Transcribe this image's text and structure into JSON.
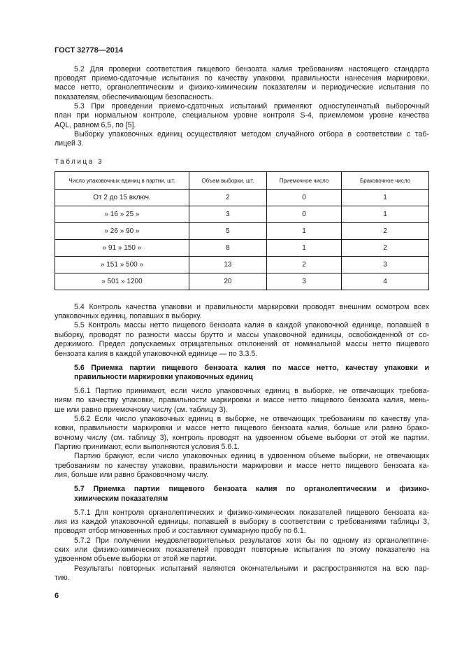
{
  "header": "ГОСТ 32778—2014",
  "blocks_top": [
    {
      "indent": true,
      "lines": [
        "5.2 Для проверки соответствия пищевого бензоата калия требованиям настоящего стандарта",
        "проводят приемо-сдаточные испытания по качеству упаковки, правильности нанесения маркировки,",
        "массе нетто, органолептическим и физико-химическим показателям и периодические испытания по",
        "показателям, обеспечивающим безопасность."
      ]
    },
    {
      "indent": true,
      "lines": [
        "5.3 При проведении приемо-сдаточных испытаний применяют одноступенчатый выборочный",
        "план при нормальном контроле, специальном уровне контроля S-4, приемлемом уровне качества",
        "AQL, равном 6,5, по [5]."
      ]
    },
    {
      "indent": true,
      "lines": [
        "Выборку упаковочных единиц осуществляют методом случайного отбора в соответствии с таб-",
        "лицей 3."
      ]
    }
  ],
  "table": {
    "caption": "Таблица 3",
    "headers": [
      "Число упаковочных единиц в партии, шт.",
      "Объем выборки, шт.",
      "Приемочное число",
      "Браковочное число"
    ],
    "rows": [
      [
        "От 2 до 15 включ.",
        "2",
        "0",
        "1"
      ],
      [
        "» 16 » 25 »",
        "3",
        "0",
        "1"
      ],
      [
        "» 26 » 90 »",
        "5",
        "1",
        "2"
      ],
      [
        "» 91 » 150 »",
        "8",
        "1",
        "2"
      ],
      [
        "» 151 » 500 »",
        "13",
        "2",
        "3"
      ],
      [
        "» 501 » 1200",
        "20",
        "3",
        "4"
      ]
    ]
  },
  "blocks_bottom": [
    {
      "lines": [
        "5.4 Контроль качества упаковки и правильности маркировки проводят внешним осмотром всех",
        "упаковочных единиц, попавших в выборку."
      ]
    },
    {
      "lines": [
        "5.5 Контроль массы нетто пищевого бензоата калия в каждой упаковочной единице, попавшей в",
        "выборку, проводят по разности массы брутто и массы упаковочной единицы, освобожденной от со-",
        "держимого. Предел допускаемых отрицательных отклонений от номинальной массы нетто пищевого",
        "бензоата калия в каждой упаковочной единице — по 3.3.5."
      ]
    },
    {
      "bold": true,
      "lines": [
        "5.6 Приемка партии пищевого бензоата калия по массе нетто, качеству упаковки и",
        "правильности маркировки упаковочных единиц"
      ]
    },
    {
      "lines": [
        "5.6.1 Партию принимают, если число упаковочных единиц в выборке, не отвечающих требова-",
        "ниям по качеству упаковки, правильности маркировки и массе нетто пищевого бензоата калия, мень-",
        "ше или равно приемочному числу (см. таблицу 3)."
      ]
    },
    {
      "lines": [
        "5.6.2 Если число упаковочных единиц в выборке, не отвечающих требованиям по качеству упа-",
        "ковки, правильности маркировки и массе нетто пищевого бензоата калия, больше или равно брако-",
        "вочному числу (см. таблицу 3), контроль проводят на удвоенном объеме выборки от этой же партии.",
        "Партию принимают, если выполняются условия 5.6.1."
      ]
    },
    {
      "lines": [
        "Партию бракуют, если число упаковочных единиц в удвоенном объеме выборки, не отвечающих",
        "требованиям по качеству упаковки, правильности маркировки и массе нетто пищевого бензоата ка-",
        "лия, больше или равно браковочному числу."
      ]
    },
    {
      "bold": true,
      "lines": [
        "5.7 Приемка партии пищевого бензоата калия по органолептическим и физико-",
        "химическим показателям"
      ]
    },
    {
      "lines": [
        "5.7.1 Для контроля органолептических и физико-химических показателей пищевого бензоата ка-",
        "лия из каждой упаковочной единицы, попавшей в выборку в соответствии с требованиями таблицы 3,",
        "проводят отбор мгновенных проб и составляют суммарную пробу по 6.1."
      ]
    },
    {
      "lines": [
        "5.7.2 При получении неудовлетворительных результатов хотя бы по одному из органолептиче-",
        "ских или физико-химических показателей проводят повторные испытания по этому показателю на",
        "удвоенном объеме выборки от этой же партии."
      ]
    },
    {
      "lines": [
        "Результаты повторных испытаний являются окончательными и распространяются на всю пар-",
        "тию."
      ]
    }
  ],
  "page_number": "6"
}
